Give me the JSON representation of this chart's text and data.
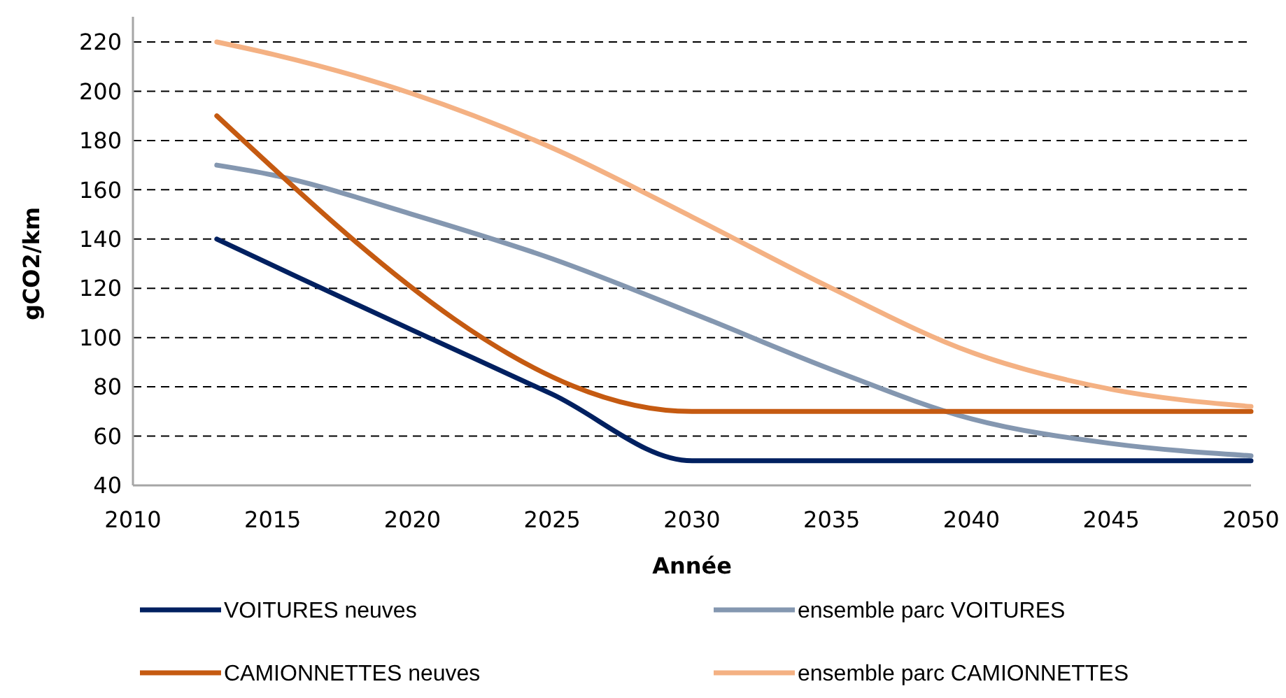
{
  "chart_data": {
    "type": "line",
    "xlabel": "Année",
    "ylabel": "gCO2/km",
    "xlim": [
      2010,
      2050
    ],
    "xticks": [
      2010,
      2015,
      2020,
      2025,
      2030,
      2035,
      2040,
      2045,
      2050
    ],
    "ylim": [
      40,
      220
    ],
    "yticks": [
      40,
      60,
      80,
      100,
      120,
      140,
      160,
      180,
      200,
      220
    ],
    "grid": "y",
    "legend": "bottom",
    "marker": "none",
    "line_style": "solid",
    "series": [
      {
        "name": "VOITURES neuves",
        "color": "#002060",
        "x": [
          2013,
          2016,
          2020,
          2025,
          2030,
          2050
        ],
        "values": [
          140,
          124,
          103,
          77,
          50,
          50
        ]
      },
      {
        "name": "ensemble parc VOITURES",
        "color": "#8497b0",
        "x": [
          2013,
          2015,
          2020,
          2025,
          2030,
          2035,
          2040,
          2045,
          2050
        ],
        "values": [
          170,
          166,
          150,
          132,
          110,
          87,
          67,
          57,
          52
        ]
      },
      {
        "name": "CAMIONNETTES neuves",
        "color": "#c55a11",
        "x": [
          2013,
          2030,
          2050
        ],
        "values": [
          190,
          70,
          70
        ]
      },
      {
        "name": "ensemble parc CAMIONNETTES",
        "color": "#f4b183",
        "x": [
          2013,
          2015,
          2020,
          2025,
          2030,
          2035,
          2040,
          2045,
          2050
        ],
        "values": [
          220,
          215,
          199,
          177,
          149,
          120,
          94,
          79,
          72
        ]
      }
    ]
  }
}
